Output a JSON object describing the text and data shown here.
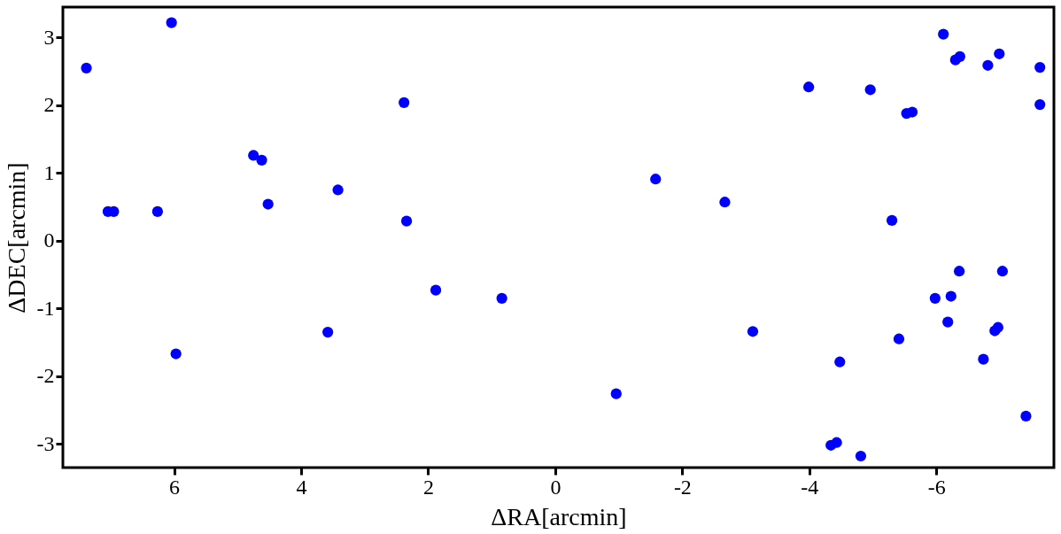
{
  "chart_data": {
    "type": "scatter",
    "xlabel": "ΔRA[arcmin]",
    "ylabel": "ΔDEC[arcmin]",
    "xlim": [
      7.75,
      -7.85
    ],
    "xticks": [
      6,
      4,
      2,
      0,
      -2,
      -4,
      -6
    ],
    "ylim": [
      -3.35,
      3.45
    ],
    "yticks": [
      -3,
      -2,
      -1,
      0,
      1,
      2,
      3
    ],
    "grid": false,
    "marker": "circle",
    "series": [
      {
        "color": "#0000ff",
        "x": [
          7.38,
          6.04,
          7.04,
          6.95,
          6.26,
          4.75,
          4.62,
          4.52,
          3.42,
          2.38,
          2.34,
          5.97,
          3.58,
          1.88,
          0.84,
          -6.11,
          -6.3,
          -6.37,
          -6.81,
          -6.99,
          -7.63,
          -7.63,
          -3.99,
          -4.96,
          -5.53,
          -5.62,
          -1.58,
          -2.67,
          -5.3,
          -6.36,
          -7.04,
          -5.98,
          -6.23,
          -6.18,
          -6.92,
          -6.97,
          -6.74,
          -5.41,
          -4.48,
          -3.11,
          -0.96,
          -4.34,
          -4.43,
          -4.81,
          -7.41
        ],
        "values": [
          2.55,
          3.22,
          0.43,
          0.43,
          0.43,
          1.26,
          1.19,
          0.54,
          0.75,
          2.04,
          0.29,
          -1.67,
          -1.35,
          -0.73,
          -0.85,
          3.05,
          2.67,
          2.72,
          2.59,
          2.76,
          2.56,
          2.01,
          2.27,
          2.23,
          1.88,
          1.9,
          0.91,
          0.57,
          0.3,
          -0.45,
          -0.45,
          -0.85,
          -0.82,
          -1.2,
          -1.33,
          -1.28,
          -1.75,
          -1.45,
          -1.79,
          -1.34,
          -2.26,
          -3.02,
          -2.98,
          -3.18,
          -2.59
        ]
      }
    ]
  }
}
